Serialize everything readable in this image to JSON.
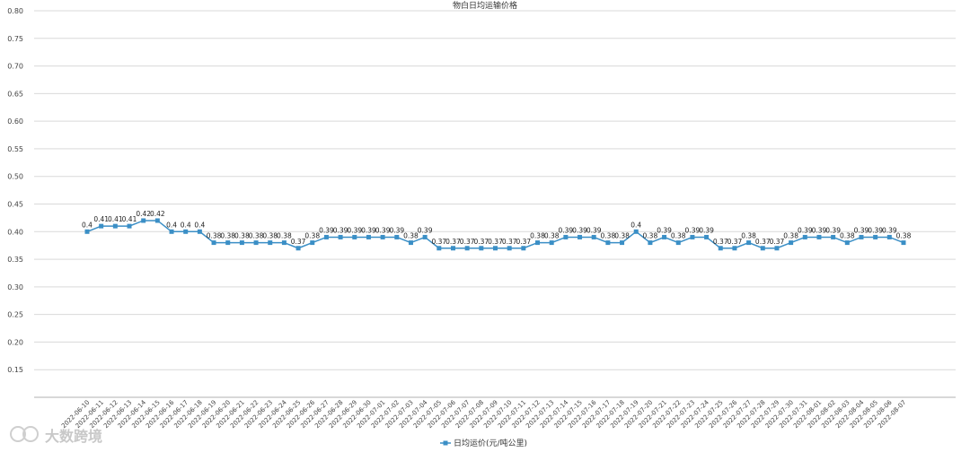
{
  "chart_data": {
    "type": "line",
    "title": "物白日均运输价格",
    "xlabel": "",
    "ylabel": "",
    "ylim": [
      0.1,
      0.8
    ],
    "yticks": [
      0.15,
      0.2,
      0.25,
      0.3,
      0.35,
      0.4,
      0.45,
      0.5,
      0.55,
      0.6,
      0.65,
      0.7,
      0.75,
      0.8
    ],
    "grid": true,
    "legend_position": "bottom-center",
    "color": "#3b8fc6",
    "x": [
      "2022-06-10",
      "2022-06-11",
      "2022-06-12",
      "2022-06-13",
      "2022-06-14",
      "2022-06-15",
      "2022-06-16",
      "2022-06-17",
      "2022-06-18",
      "2022-06-19",
      "2022-06-20",
      "2022-06-21",
      "2022-06-22",
      "2022-06-23",
      "2022-06-24",
      "2022-06-25",
      "2022-06-26",
      "2022-06-27",
      "2022-06-28",
      "2022-06-29",
      "2022-06-30",
      "2022-07-01",
      "2022-07-02",
      "2022-07-03",
      "2022-07-04",
      "2022-07-05",
      "2022-07-06",
      "2022-07-07",
      "2022-07-08",
      "2022-07-09",
      "2022-07-10",
      "2022-07-11",
      "2022-07-12",
      "2022-07-13",
      "2022-07-14",
      "2022-07-15",
      "2022-07-16",
      "2022-07-17",
      "2022-07-18",
      "2022-07-19",
      "2022-07-20",
      "2022-07-21",
      "2022-07-22",
      "2022-07-23",
      "2022-07-24",
      "2022-07-25",
      "2022-07-26",
      "2022-07-27",
      "2022-07-28",
      "2022-07-29",
      "2022-07-30",
      "2022-07-31",
      "2022-08-01",
      "2022-08-02",
      "2022-08-03",
      "2022-08-04",
      "2022-08-05",
      "2022-08-06",
      "2022-08-07"
    ],
    "series": [
      {
        "name": "日均运价(元/吨公里)",
        "values": [
          0.4,
          0.41,
          0.41,
          0.41,
          0.42,
          0.42,
          0.4,
          0.4,
          0.4,
          0.38,
          0.38,
          0.38,
          0.38,
          0.38,
          0.38,
          0.37,
          0.38,
          0.39,
          0.39,
          0.39,
          0.39,
          0.39,
          0.39,
          0.38,
          0.39,
          0.37,
          0.37,
          0.37,
          0.37,
          0.37,
          0.37,
          0.37,
          0.38,
          0.38,
          0.39,
          0.39,
          0.39,
          0.38,
          0.38,
          0.4,
          0.38,
          0.39,
          0.38,
          0.39,
          0.39,
          0.37,
          0.37,
          0.38,
          0.37,
          0.37,
          0.38,
          0.39,
          0.39,
          0.39,
          0.38,
          0.39,
          0.39,
          0.39,
          0.38
        ],
        "labels": [
          "0.4",
          "0.41",
          "0.41",
          "0.41",
          "0.42",
          "0.42",
          "0.4",
          "0.4",
          "0.4",
          "0.38",
          "0.38",
          "0.38",
          "0.38",
          "0.38",
          "0.38",
          "0.37",
          "0.38",
          "0.39",
          "0.39",
          "0.39",
          "0.39",
          "0.39",
          "0.39",
          "0.38",
          "0.39",
          "0.37",
          "0.37",
          "0.37",
          "0.37",
          "0.37",
          "0.37",
          "0.37",
          "0.38",
          "0.38",
          "0.39",
          "0.39",
          "0.39",
          "0.38",
          "0.38",
          "0.4",
          "0.38",
          "0.39",
          "0.38",
          "0.39",
          "0.39",
          "0.37",
          "0.37",
          "0.38",
          "0.37",
          "0.37",
          "0.38",
          "0.39",
          "0.39",
          "0.39",
          "0.38",
          "0.39",
          "0.39",
          "0.39",
          "0.38"
        ]
      }
    ]
  },
  "watermark": "大数跨境"
}
